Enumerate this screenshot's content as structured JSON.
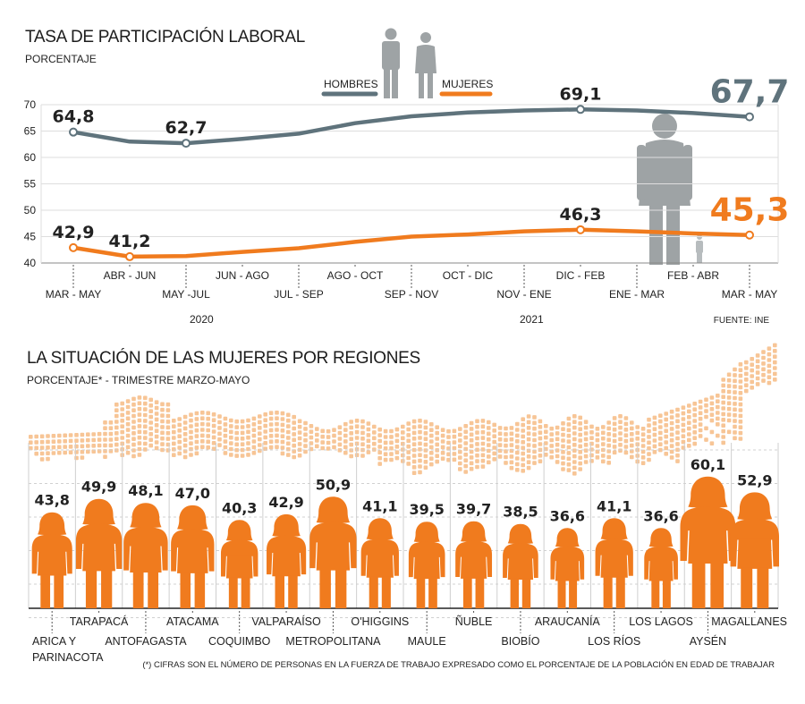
{
  "chart_data": [
    {
      "type": "line",
      "title": "TASA DE PARTICIPACIÓN LABORAL",
      "subtitle": "PORCENTAJE",
      "x": [
        "MAR - MAY",
        "ABR - JUN",
        "MAY -JUL",
        "JUN - AGO",
        "JUL - SEP",
        "AGO - OCT",
        "SEP - NOV",
        "OCT - DIC",
        "NOV - ENE",
        "DIC - FEB",
        "ENE - MAR",
        "FEB - ABR",
        "MAR - MAY"
      ],
      "years": [
        "2020",
        "2021"
      ],
      "series": [
        {
          "name": "HOMBRES",
          "color": "#5f737c",
          "values": [
            64.8,
            63.0,
            62.7,
            63.5,
            64.5,
            66.5,
            67.8,
            68.5,
            68.9,
            69.1,
            68.9,
            68.4,
            67.7
          ],
          "labels": {
            "0": "64,8",
            "2": "62,7",
            "9": "69,1",
            "12": "67,7"
          }
        },
        {
          "name": "MUJERES",
          "color": "#f07b1e",
          "values": [
            42.9,
            41.2,
            41.3,
            42.1,
            42.8,
            44.0,
            45.0,
            45.4,
            46.0,
            46.3,
            46.0,
            45.6,
            45.3
          ],
          "labels": {
            "0": "42,9",
            "1": "41,2",
            "9": "46,3",
            "12": "45,3"
          }
        }
      ],
      "ylim": [
        40,
        70
      ],
      "yticks": [
        40,
        45,
        50,
        55,
        60,
        65,
        70
      ],
      "grid": true,
      "legend": "top-center",
      "source": "FUENTE: INE"
    },
    {
      "type": "bar",
      "title": "LA SITUACIÓN DE LAS MUJERES POR REGIONES",
      "subtitle": "PORCENTAJE* - TRIMESTRE MARZO-MAYO",
      "categories": [
        "ARICA Y PARINACOTA",
        "TARAPACÁ",
        "ANTOFAGASTA",
        "ATACAMA",
        "COQUIMBO",
        "VALPARAÍSO",
        "METROPOLITANA",
        "O'HIGGINS",
        "MAULE",
        "ÑUBLE",
        "BIOBÍO",
        "ARAUCANÍA",
        "LOS RÍOS",
        "LOS LAGOS",
        "AYSÉN",
        "MAGALLANES"
      ],
      "values": [
        43.8,
        49.9,
        48.1,
        47.0,
        40.3,
        42.9,
        50.9,
        41.1,
        39.5,
        39.7,
        38.5,
        36.6,
        41.1,
        36.6,
        60.1,
        52.9
      ],
      "value_labels": [
        "43,8",
        "49,9",
        "48,1",
        "47,0",
        "40,3",
        "42,9",
        "50,9",
        "41,1",
        "39,5",
        "39,7",
        "38,5",
        "36,6",
        "41,1",
        "36,6",
        "60,1",
        "52,9"
      ],
      "color": "#f07b1e",
      "footnote": "(*) CIFRAS SON EL NÚMERO DE PERSONAS EN LA FUERZA DE TRABAJO EXPRESADO COMO EL PORCENTAJE DE LA POBLACIÓN EN EDAD DE TRABAJAR"
    }
  ],
  "colors": {
    "hombres": "#5f737c",
    "mujeres": "#f07b1e",
    "figure_gray": "#9ea3a5",
    "map_dots": "#f7c596",
    "grid": "#dddddd"
  }
}
